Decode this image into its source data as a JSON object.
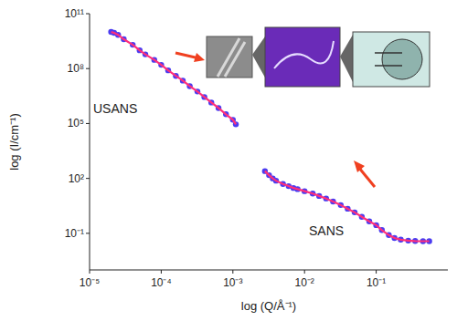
{
  "chart_data": {
    "type": "scatter",
    "x_label": "log (Q/Å⁻¹)",
    "y_label": "log (I/cm⁻¹)",
    "log": true,
    "grid": false,
    "xlim": [
      1e-05,
      1
    ],
    "ylim": [
      0.001,
      100000000000.0
    ],
    "xticks": [
      {
        "value": 1e-05,
        "label": "10⁻⁵"
      },
      {
        "value": 0.0001,
        "label": "10⁻⁴"
      },
      {
        "value": 0.001,
        "label": "10⁻³"
      },
      {
        "value": 0.01,
        "label": "10⁻²"
      },
      {
        "value": 0.1,
        "label": "10⁻¹"
      }
    ],
    "yticks": [
      {
        "value": 0.1,
        "label": "10⁻¹"
      },
      {
        "value": 100.0,
        "label": "10²"
      },
      {
        "value": 100000.0,
        "label": "10⁵"
      },
      {
        "value": 100000000.0,
        "label": "10⁸"
      },
      {
        "value": 100000000000.0,
        "label": "10¹¹"
      }
    ],
    "series": [
      {
        "name": "USANS",
        "color": "#4b3cf0",
        "marker": "circle",
        "line_style": "solid",
        "x": [
          2e-05,
          2.2e-05,
          2.5e-05,
          3e-05,
          4e-05,
          5e-05,
          6e-05,
          8e-05,
          0.0001,
          0.000125,
          0.00016,
          0.0002,
          0.00025,
          0.00032,
          0.0004,
          0.0005,
          0.00063,
          0.0008,
          0.001,
          0.0011
        ],
        "values": [
          10000000000.0,
          9000000000.0,
          7000000000.0,
          4000000000.0,
          2000000000.0,
          1000000000.0,
          600000000.0,
          300000000.0,
          160000000.0,
          80000000.0,
          40000000.0,
          22000000.0,
          11000000.0,
          5600000.0,
          2800000.0,
          1400000.0,
          700000.0,
          320000.0,
          160000.0,
          90000.0
        ]
      },
      {
        "name": "SANS",
        "color": "#4b3cf0",
        "marker": "circle",
        "line_style": "solid",
        "x": [
          0.0028,
          0.0032,
          0.0036,
          0.004,
          0.005,
          0.006,
          0.007,
          0.008,
          0.01,
          0.013,
          0.016,
          0.02,
          0.025,
          0.032,
          0.04,
          0.05,
          0.063,
          0.08,
          0.1,
          0.12,
          0.15,
          0.18,
          0.22,
          0.28,
          0.35,
          0.45,
          0.55
        ],
        "values": [
          250,
          150,
          100,
          75,
          50,
          38,
          30,
          26,
          20,
          15,
          11,
          8,
          5.5,
          3.5,
          2.2,
          1.4,
          0.8,
          0.45,
          0.28,
          0.15,
          0.08,
          0.055,
          0.045,
          0.04,
          0.038,
          0.037,
          0.037
        ]
      }
    ]
  }
}
